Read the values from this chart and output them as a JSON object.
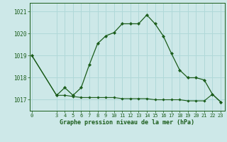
{
  "title": "Graphe pression niveau de la mer (hPa)",
  "background_color": "#cde8e8",
  "grid_color": "#b0d8d8",
  "line_color": "#1a5c1a",
  "marker_color": "#1a5c1a",
  "x_values": [
    0,
    3,
    4,
    5,
    6,
    7,
    8,
    9,
    10,
    11,
    12,
    13,
    14,
    15,
    16,
    17,
    18,
    19,
    20,
    21,
    22,
    23
  ],
  "y_main": [
    1019.0,
    1017.2,
    1017.55,
    1017.2,
    1017.55,
    1018.6,
    1019.55,
    1019.9,
    1020.05,
    1020.45,
    1020.45,
    1020.45,
    1020.85,
    1020.45,
    1019.9,
    1019.1,
    1018.35,
    1018.0,
    1018.0,
    1017.9,
    1017.25,
    1016.9
  ],
  "y_min": [
    1019.0,
    1017.2,
    1017.2,
    1017.15,
    1017.1,
    1017.1,
    1017.1,
    1017.1,
    1017.1,
    1017.05,
    1017.05,
    1017.05,
    1017.05,
    1017.0,
    1017.0,
    1017.0,
    1017.0,
    1016.95,
    1016.95,
    1016.95,
    1017.25,
    1016.9
  ],
  "ylim": [
    1016.5,
    1021.4
  ],
  "yticks": [
    1017,
    1018,
    1019,
    1020,
    1021
  ],
  "xlim": [
    -0.3,
    23.5
  ],
  "xticks": [
    0,
    3,
    4,
    5,
    6,
    7,
    8,
    9,
    10,
    11,
    12,
    13,
    14,
    15,
    16,
    17,
    18,
    19,
    20,
    21,
    22,
    23
  ],
  "figwidth": 3.2,
  "figheight": 2.0,
  "dpi": 100
}
